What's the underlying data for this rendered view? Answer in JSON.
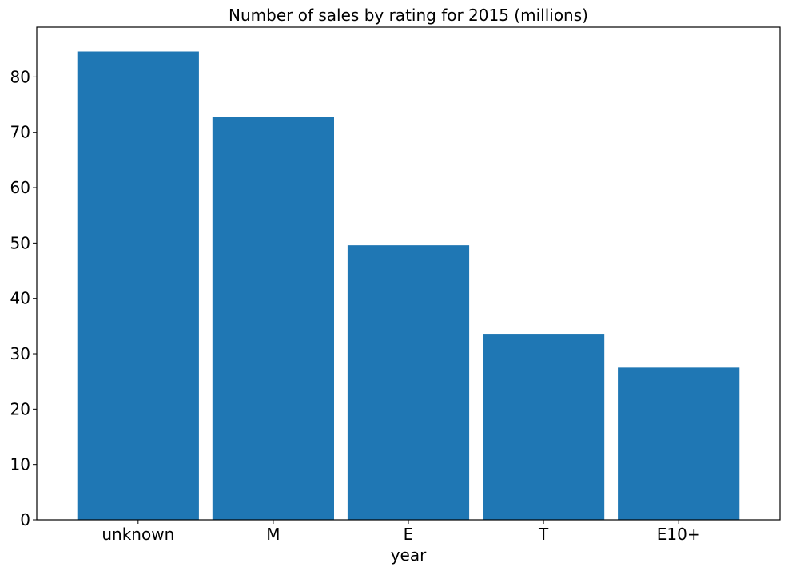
{
  "chart_data": {
    "type": "bar",
    "title": "Number of sales by rating for 2015 (millions)",
    "xlabel": "year",
    "ylabel": "",
    "categories": [
      "unknown",
      "M",
      "E",
      "T",
      "E10+"
    ],
    "values": [
      84.6,
      72.8,
      49.6,
      33.6,
      27.5
    ],
    "ylim": [
      0,
      89
    ],
    "yticks": [
      0,
      10,
      20,
      30,
      40,
      50,
      60,
      70,
      80
    ],
    "bar_color": "#1f77b4",
    "grid": false,
    "legend": "none"
  }
}
